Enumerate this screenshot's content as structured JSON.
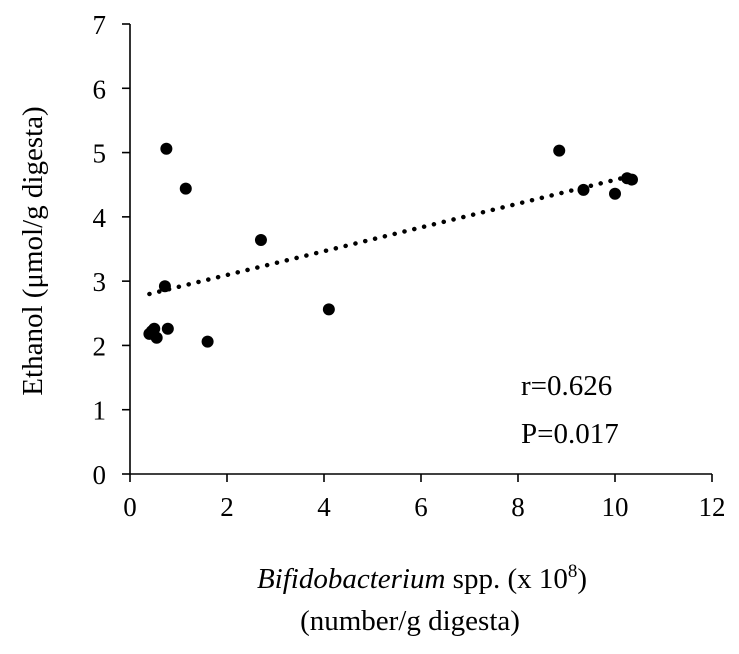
{
  "chart_data": {
    "type": "scatter",
    "title": "",
    "xlabel": {
      "italic": "Bifidobacterium",
      "rest": " spp. (x 10",
      "superscript": "8",
      "close": ")",
      "line2": "(number/g digesta)"
    },
    "ylabel": "Ethanol (μmol/g digesta)",
    "xlim": [
      0,
      12
    ],
    "ylim": [
      0,
      7
    ],
    "xticks": [
      0,
      2,
      4,
      6,
      8,
      10,
      12
    ],
    "yticks": [
      0,
      1,
      2,
      3,
      4,
      5,
      6,
      7
    ],
    "grid": false,
    "legend": "none",
    "point_color": "#000000",
    "series": [
      {
        "points": [
          {
            "x": 0.4,
            "y": 2.18
          },
          {
            "x": 0.45,
            "y": 2.22
          },
          {
            "x": 0.5,
            "y": 2.26
          },
          {
            "x": 0.55,
            "y": 2.12
          },
          {
            "x": 0.72,
            "y": 2.92
          },
          {
            "x": 0.75,
            "y": 5.06
          },
          {
            "x": 0.78,
            "y": 2.26
          },
          {
            "x": 1.15,
            "y": 4.44
          },
          {
            "x": 1.6,
            "y": 2.06
          },
          {
            "x": 2.7,
            "y": 3.64
          },
          {
            "x": 4.1,
            "y": 2.56
          },
          {
            "x": 8.85,
            "y": 5.03
          },
          {
            "x": 9.35,
            "y": 4.42
          },
          {
            "x": 10.0,
            "y": 4.36
          },
          {
            "x": 10.25,
            "y": 4.6
          },
          {
            "x": 10.35,
            "y": 4.58
          }
        ]
      }
    ],
    "trendline": {
      "style": "dotted",
      "x": [
        0.4,
        10.35
      ],
      "y": [
        2.8,
        4.64
      ]
    },
    "annotations": {
      "r": "r=0.626",
      "p": "P=0.017"
    }
  }
}
